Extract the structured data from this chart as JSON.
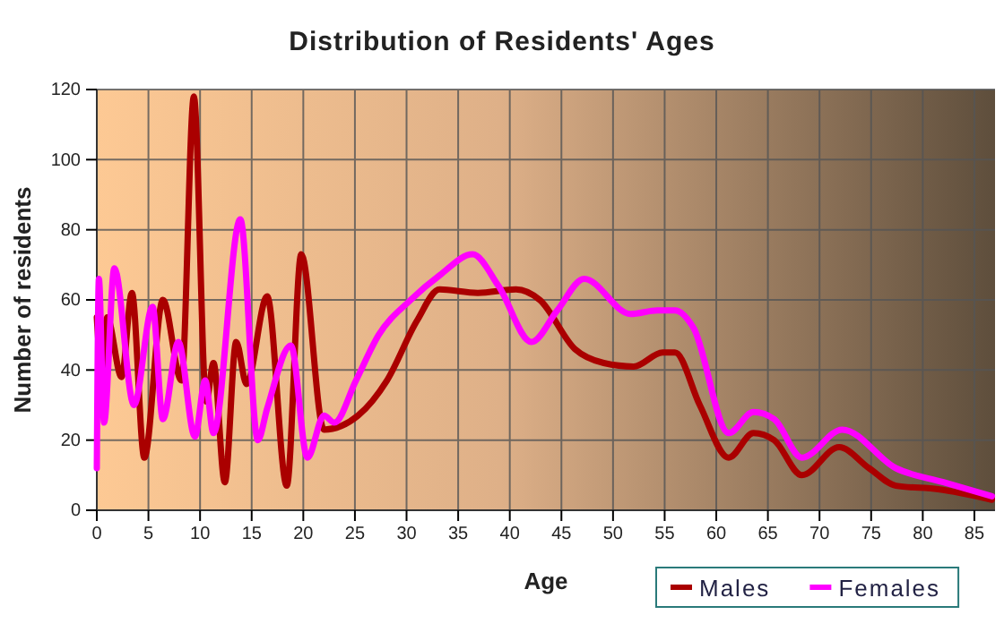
{
  "chart_data": {
    "type": "line",
    "title": "Distribution of Residents' Ages",
    "xlabel": "Age",
    "ylabel": "Number of residents",
    "xlim": [
      0,
      87
    ],
    "xticks": [
      0,
      5,
      10,
      15,
      20,
      25,
      30,
      35,
      40,
      45,
      50,
      55,
      60,
      65,
      70,
      75,
      80,
      85
    ],
    "ylim": [
      0,
      120
    ],
    "yticks": [
      0,
      20,
      40,
      60,
      80,
      100,
      120
    ],
    "grid": true,
    "legend": "bottom",
    "line_style": "solid",
    "marker": "none",
    "series": [
      {
        "name": "Males",
        "color": "#aa0000",
        "x": [
          0,
          0.5,
          1,
          2.4,
          3.4,
          4.6,
          6.4,
          8.2,
          9.4,
          10.6,
          11.3,
          12.4,
          13.5,
          14.5,
          16.5,
          18.4,
          19.8,
          22,
          25.3,
          28.1,
          31,
          33.2,
          36.9,
          40.6,
          42.9,
          46.3,
          49.1,
          52,
          54.8,
          56,
          58.4,
          61.2,
          63.6,
          65.6,
          68.3,
          71.9,
          74.8,
          77.4,
          81.5,
          86.7
        ],
        "values": [
          55,
          39,
          55,
          38,
          62,
          15,
          60,
          37,
          118,
          31,
          42,
          8,
          48,
          36,
          61,
          7,
          73,
          23,
          27,
          37,
          54,
          63,
          62,
          63,
          60,
          46,
          42,
          41,
          45,
          45,
          30,
          15,
          22,
          20,
          10,
          18,
          12,
          7,
          6,
          3
        ]
      },
      {
        "name": "Females",
        "color": "#ff00ff",
        "x": [
          0,
          0.2,
          0.7,
          1.7,
          3.6,
          5.4,
          6.4,
          7.9,
          9.5,
          10.5,
          11.3,
          13.9,
          15.6,
          16.5,
          18.8,
          20.4,
          22,
          23,
          25.1,
          27.3,
          30.4,
          33.2,
          36.4,
          38.9,
          42.1,
          44.6,
          47.2,
          51.7,
          54.3,
          56,
          57.8,
          61.2,
          63.6,
          65.6,
          68.3,
          72.2,
          77.4,
          82,
          86.7
        ],
        "values": [
          12,
          66,
          25,
          69,
          30,
          58,
          26,
          48,
          21,
          37,
          22,
          83,
          20,
          29,
          47,
          15,
          27,
          25,
          37,
          50,
          60,
          67,
          73,
          64,
          48,
          57,
          66,
          56,
          57,
          57,
          52,
          22,
          28,
          26,
          15,
          23,
          12,
          8,
          4
        ]
      }
    ]
  }
}
